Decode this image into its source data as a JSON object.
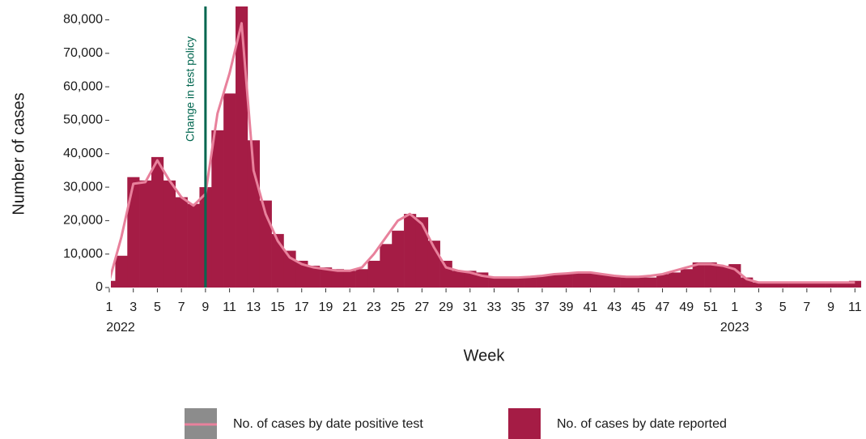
{
  "chart_data": {
    "type": "bar",
    "x_label": "Week",
    "y_label": "Number of cases",
    "categories": [
      "1",
      null,
      "3",
      null,
      "5",
      null,
      "7",
      null,
      "9",
      null,
      "11",
      null,
      "13",
      null,
      "15",
      null,
      "17",
      null,
      "19",
      null,
      "21",
      null,
      "23",
      null,
      "25",
      null,
      "27",
      null,
      "29",
      null,
      "31",
      null,
      "33",
      null,
      "35",
      null,
      "37",
      null,
      "39",
      null,
      "41",
      null,
      "43",
      null,
      "45",
      null,
      "47",
      null,
      "49",
      null,
      "51",
      null,
      "1",
      null,
      "3",
      null,
      "5",
      null,
      "7",
      null,
      "9",
      null,
      "11"
    ],
    "x_groups": [
      {
        "label": "2022",
        "start": 0
      },
      {
        "label": "2023",
        "start": 52
      }
    ],
    "ylim": [
      0,
      84000
    ],
    "yticks": [
      0,
      {
        "value": 10000,
        "label": "10,000"
      },
      {
        "value": 20000,
        "label": "20,000"
      },
      {
        "value": 30000,
        "label": "30,000"
      },
      {
        "value": 40000,
        "label": "40,000"
      },
      {
        "value": 50000,
        "label": "50,000"
      },
      {
        "value": 60000,
        "label": "60,000"
      },
      {
        "value": 70000,
        "label": "70,000"
      },
      {
        "value": 80000,
        "label": "80,000"
      }
    ],
    "series": [
      {
        "name": "No. of cases by date positive test",
        "type": "line",
        "color": "#e8819c",
        "legend_swatch": "#8c8c8c",
        "values": [
          2000,
          15000,
          31000,
          31500,
          38000,
          32000,
          27000,
          24500,
          28000,
          52000,
          64000,
          79000,
          35000,
          22000,
          14000,
          9000,
          7000,
          6000,
          5500,
          5000,
          5000,
          6000,
          10000,
          15000,
          20000,
          22000,
          19000,
          12000,
          6000,
          5000,
          4500,
          3500,
          3000,
          3000,
          3000,
          3200,
          3500,
          4000,
          4200,
          4500,
          4500,
          4000,
          3500,
          3200,
          3200,
          3500,
          4000,
          5000,
          6000,
          7000,
          7000,
          6500,
          5500,
          2500,
          1500,
          1500,
          1500,
          1500,
          1500,
          1500,
          1500,
          1500,
          1500
        ]
      },
      {
        "name": "No. of cases by date reported",
        "type": "bar",
        "color": "#a51c45",
        "values": [
          2000,
          9500,
          33000,
          32000,
          39000,
          32000,
          27000,
          25000,
          30000,
          47000,
          58000,
          84000,
          44000,
          26000,
          16000,
          11000,
          8000,
          6500,
          6000,
          5500,
          5000,
          5500,
          8000,
          13000,
          17000,
          22000,
          21000,
          14000,
          8000,
          5000,
          5000,
          4500,
          3000,
          3000,
          3000,
          3000,
          3500,
          4000,
          4000,
          4500,
          4500,
          4000,
          3500,
          3000,
          3000,
          3000,
          4000,
          4500,
          5500,
          7500,
          7500,
          6500,
          7000,
          3000,
          1500,
          1500,
          1500,
          1500,
          1500,
          1500,
          1500,
          1500,
          2000
        ]
      }
    ],
    "annotations": [
      {
        "text": "Change in test policy",
        "category_index": 8,
        "color": "#00664f"
      }
    ]
  }
}
